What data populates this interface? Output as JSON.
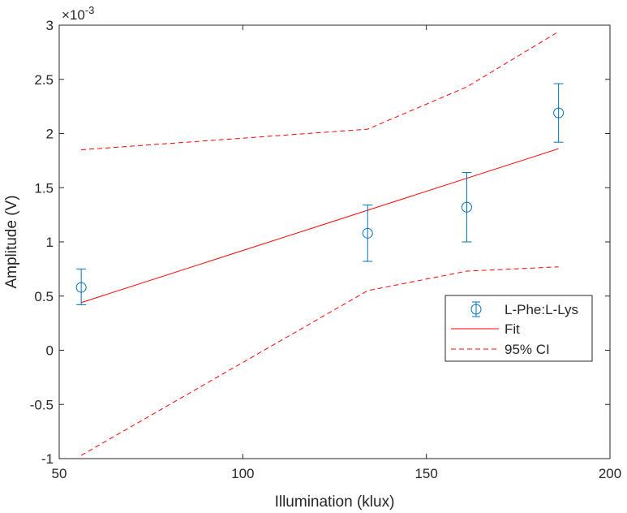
{
  "chart_data": {
    "type": "scatter",
    "xlabel": "Illumination (klux)",
    "ylabel": "Amplitude (V)",
    "xlim": [
      50,
      200
    ],
    "ylim": [
      -1,
      3
    ],
    "y_exponent_label": "×10",
    "y_exponent_power": "-3",
    "x_ticks": [
      50,
      100,
      150,
      200
    ],
    "x_tick_labels": [
      "50",
      "100",
      "150",
      "200"
    ],
    "y_ticks": [
      -1,
      -0.5,
      0,
      0.5,
      1,
      1.5,
      2,
      2.5,
      3
    ],
    "y_tick_labels": [
      "-1",
      "-0.5",
      "0",
      "0.5",
      "1",
      "1.5",
      "2",
      "2.5",
      "3"
    ],
    "grid": false,
    "legend_position": "center-right",
    "series": [
      {
        "name": "L-Phe:L-Lys",
        "style": "markers-errorbars",
        "color": "#0072BD",
        "x": [
          56,
          134,
          161,
          186
        ],
        "y": [
          0.58,
          1.08,
          1.32,
          2.19
        ],
        "err_low": [
          0.42,
          0.82,
          1.0,
          1.92
        ],
        "err_high": [
          0.75,
          1.34,
          1.64,
          2.46
        ]
      },
      {
        "name": "Fit",
        "style": "solid",
        "color": "#FF0000",
        "x": [
          56,
          186
        ],
        "y": [
          0.44,
          1.86
        ]
      },
      {
        "name": "95% CI",
        "style": "dashed",
        "color": "#FF0000",
        "segments": [
          {
            "x": [
              56,
              134,
              161,
              186
            ],
            "y": [
              1.85,
              2.04,
              2.43,
              2.94
            ]
          },
          {
            "x": [
              56,
              134,
              161,
              186
            ],
            "y": [
              -0.97,
              0.55,
              0.73,
              0.77
            ]
          }
        ]
      }
    ]
  }
}
